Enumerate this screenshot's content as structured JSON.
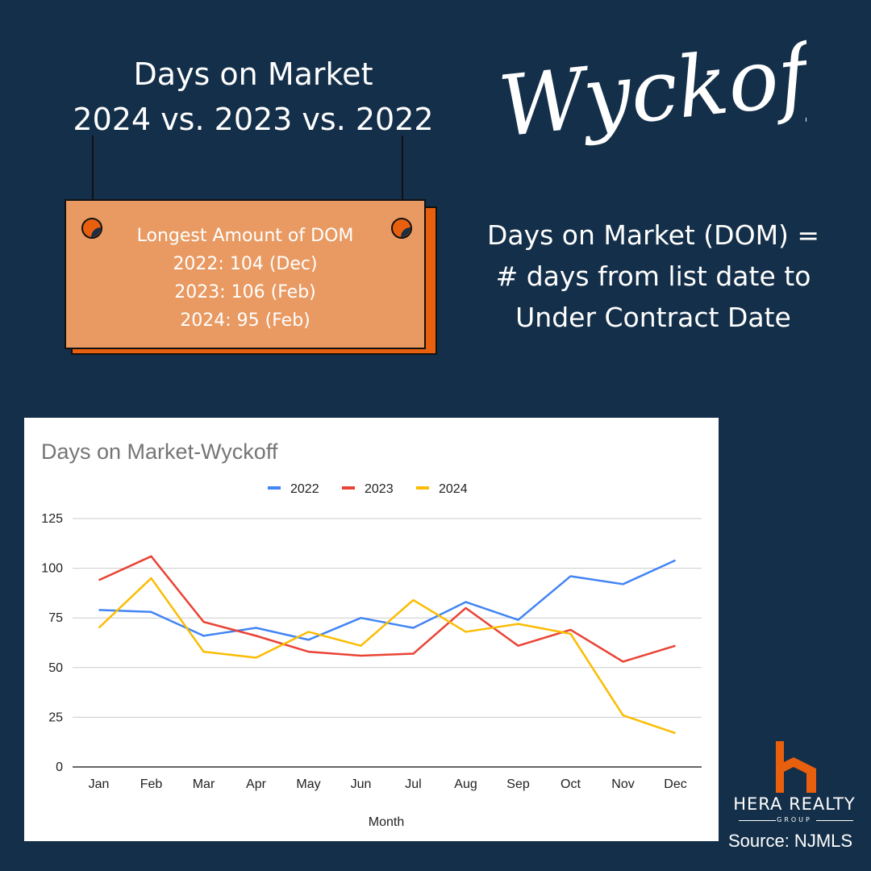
{
  "headline": {
    "line1": "Days on Market",
    "line2": "2024 vs. 2023 vs. 2022"
  },
  "town": "Wyckoff",
  "sign": {
    "heading": "Longest Amount of DOM",
    "line1": "2022: 104 (Dec)",
    "line2": "2023: 106 (Feb)",
    "line3": "2024: 95 (Feb)"
  },
  "definition": {
    "line1": "Days on Market (DOM) =",
    "line2": "# days from list date to",
    "line3": "Under Contract Date"
  },
  "logo": {
    "name": "HERA REALTY",
    "sub": "GROUP"
  },
  "source": "Source: NJMLS",
  "colors": {
    "background": "#142f49",
    "sign": "#e89a62",
    "accent": "#e8600e",
    "series_2022": "#4285f4",
    "series_2023": "#ea4335",
    "series_2024": "#fbbc04"
  },
  "chart_data": {
    "type": "line",
    "title": "Days on Market-Wyckoff",
    "xlabel": "Month",
    "ylabel": "",
    "categories": [
      "Jan",
      "Feb",
      "Mar",
      "Apr",
      "May",
      "Jun",
      "Jul",
      "Aug",
      "Sep",
      "Oct",
      "Nov",
      "Dec"
    ],
    "ylim": [
      0,
      125
    ],
    "yticks": [
      0,
      25,
      50,
      75,
      100,
      125
    ],
    "grid": true,
    "legend_position": "top",
    "series": [
      {
        "name": "2022",
        "color": "#4285f4",
        "values": [
          79,
          78,
          66,
          70,
          64,
          75,
          70,
          83,
          74,
          96,
          92,
          104
        ]
      },
      {
        "name": "2023",
        "color": "#ea4335",
        "values": [
          94,
          106,
          73,
          66,
          58,
          56,
          57,
          80,
          61,
          69,
          53,
          61
        ]
      },
      {
        "name": "2024",
        "color": "#fbbc04",
        "values": [
          70,
          95,
          58,
          55,
          68,
          61,
          84,
          68,
          72,
          67,
          26,
          17
        ]
      }
    ]
  }
}
